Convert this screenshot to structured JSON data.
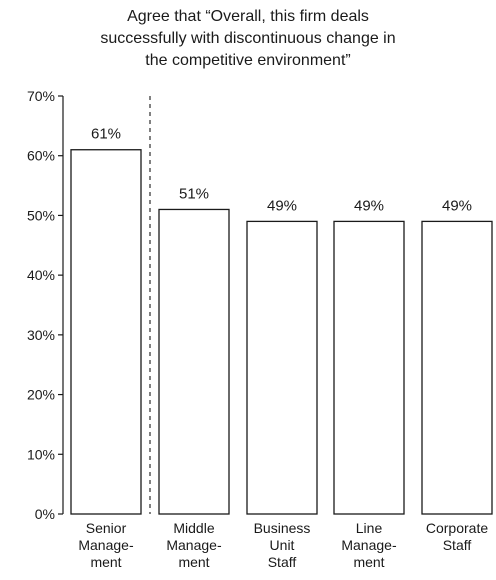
{
  "chart_data": {
    "type": "bar",
    "title_lines": [
      "Agree that “Overall, this firm deals",
      "successfully with discontinuous change in",
      "the competitive environment”"
    ],
    "categories": [
      [
        "Senior",
        "Manage-",
        "ment"
      ],
      [
        "Middle",
        "Manage-",
        "ment"
      ],
      [
        "Business",
        "Unit",
        "Staff"
      ],
      [
        "Line",
        "Manage-",
        "ment"
      ],
      [
        "Corporate",
        "Staff"
      ]
    ],
    "values": [
      61,
      51,
      49,
      49,
      49
    ],
    "value_labels": [
      "61%",
      "51%",
      "49%",
      "49%",
      "49%"
    ],
    "ylim": [
      0,
      70
    ],
    "yticks": [
      0,
      10,
      20,
      30,
      40,
      50,
      60,
      70
    ],
    "ytick_labels": [
      "0%",
      "10%",
      "20%",
      "30%",
      "40%",
      "50%",
      "60%",
      "70%"
    ],
    "separator_after_index": 0,
    "bar_fill": "#ffffff",
    "bar_stroke": "#1a1a1a",
    "grid": false
  }
}
